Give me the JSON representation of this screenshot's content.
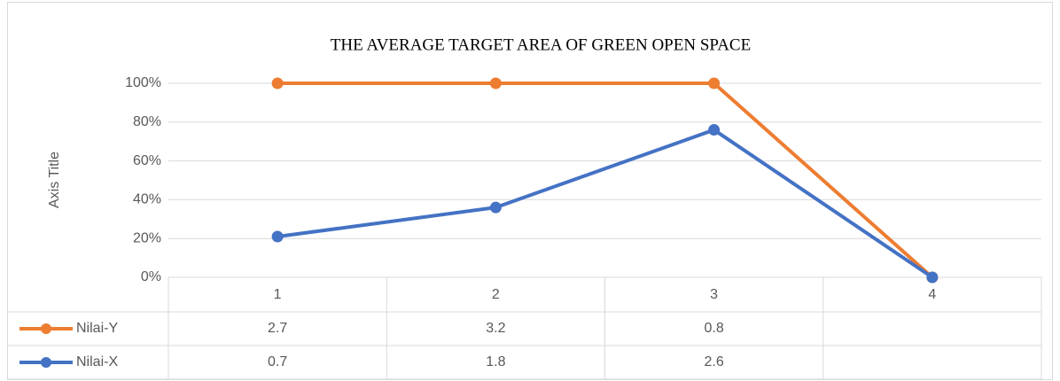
{
  "chart_data": {
    "type": "line",
    "title": "THE AVERAGE TARGET AREA OF GREEN OPEN SPACE",
    "y_axis_label": "Axis Title",
    "categories": [
      "1",
      "2",
      "3",
      "4"
    ],
    "series": [
      {
        "name": "Nilai-Y",
        "color": "#ed7d31",
        "values": [
          100,
          100,
          100,
          0
        ],
        "table_values": [
          2.7,
          3.2,
          0.8,
          null
        ]
      },
      {
        "name": "Nilai-X",
        "color": "#4472c4",
        "values": [
          21,
          36,
          76,
          0
        ],
        "table_values": [
          0.7,
          1.8,
          2.6,
          null
        ]
      }
    ],
    "ylim": [
      0,
      100
    ],
    "yticks": [
      {
        "value": 0,
        "label": "0%"
      },
      {
        "value": 20,
        "label": "20%"
      },
      {
        "value": 40,
        "label": "40%"
      },
      {
        "value": 60,
        "label": "60%"
      },
      {
        "value": 80,
        "label": "80%"
      },
      {
        "value": 100,
        "label": "100%"
      }
    ],
    "grid": true
  }
}
